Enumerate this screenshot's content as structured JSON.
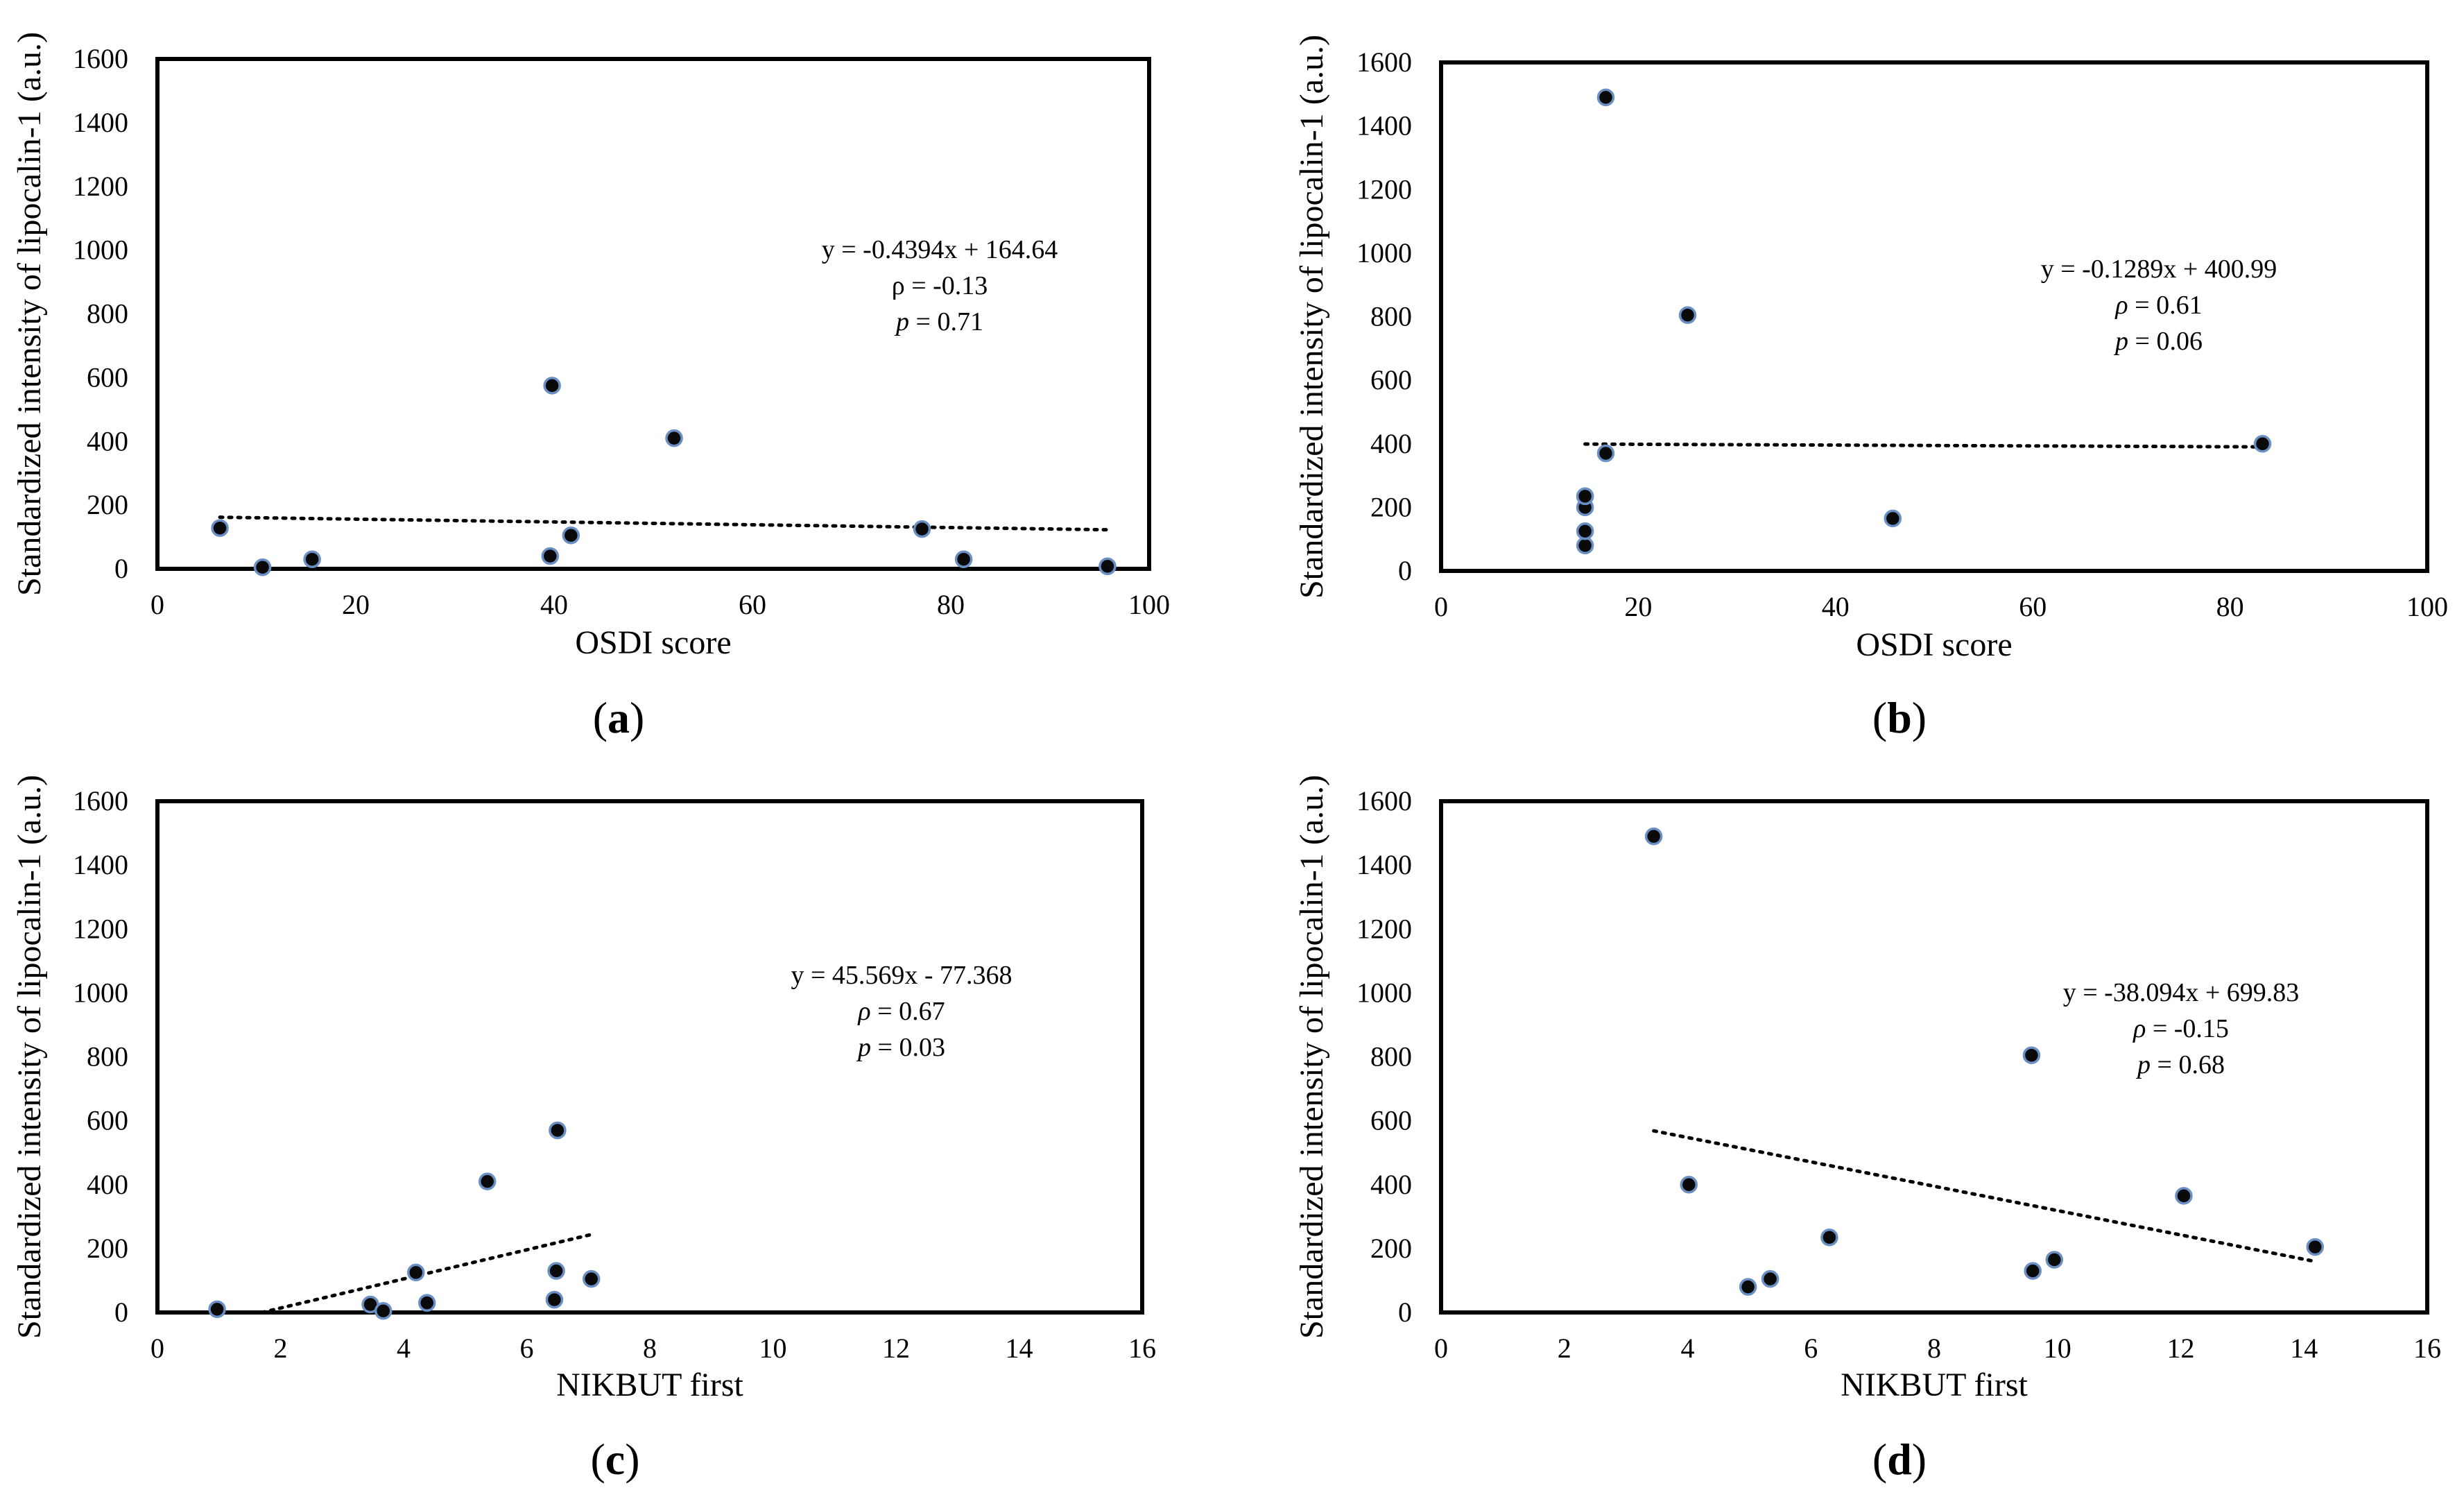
{
  "figure_ylabel": "Standardized intensity of lipocalin-1 (a.u.)",
  "chart_data": [
    {
      "type": "scatter",
      "panel": "(a)",
      "panel_letter": "a",
      "xlabel": "OSDI score",
      "ylabel": "Standardized intensity of lipocalin-1 (a.u.)",
      "xlim": [
        0,
        100
      ],
      "ylim": [
        0,
        1600
      ],
      "xticks": [
        0,
        20,
        40,
        60,
        80,
        100
      ],
      "yticks": [
        0,
        200,
        400,
        600,
        800,
        1000,
        1200,
        1400,
        1600
      ],
      "x": [
        6.3,
        10.6,
        15.6,
        39.6,
        39.8,
        41.7,
        52.1,
        77.1,
        81.3,
        95.8
      ],
      "y": [
        128,
        5,
        30,
        40,
        575,
        105,
        410,
        125,
        30,
        8
      ],
      "trendline": {
        "slope": -0.4394,
        "intercept": 164.64,
        "x_range": [
          6.3,
          95.8
        ]
      },
      "annotation": {
        "equation": "y = -0.4394x + 164.64",
        "rho_symbol": "ρ",
        "rho_rest": " = -0.13",
        "p_symbol": "p",
        "p_rest": " = 0.71",
        "rho_italic": false
      }
    },
    {
      "type": "scatter",
      "panel": "(b)",
      "panel_letter": "b",
      "xlabel": "OSDI score",
      "ylabel": "Standardized intensity of lipocalin-1 (a.u.)",
      "xlim": [
        0,
        100
      ],
      "ylim": [
        0,
        1600
      ],
      "xticks": [
        0,
        20,
        40,
        60,
        80,
        100
      ],
      "yticks": [
        0,
        200,
        400,
        600,
        800,
        1000,
        1200,
        1400,
        1600
      ],
      "x": [
        14.6,
        14.6,
        14.6,
        14.6,
        14.6,
        16.7,
        16.7,
        25.0,
        45.8,
        83.3
      ],
      "y": [
        80,
        125,
        200,
        235,
        235,
        370,
        1490,
        805,
        165,
        400
      ],
      "trendline": {
        "slope": -0.1289,
        "intercept": 400.99,
        "x_range": [
          14.6,
          83.3
        ]
      },
      "annotation": {
        "equation": "y = -0.1289x + 400.99",
        "rho_symbol": "ρ",
        "rho_rest": " = 0.61",
        "p_symbol": "p",
        "p_rest": " = 0.06",
        "rho_italic": true
      }
    },
    {
      "type": "scatter",
      "panel": "(c)",
      "panel_letter": "c",
      "xlabel": "NIKBUT  first",
      "ylabel": "Standardized intensity of lipocalin-1 (a.u.)",
      "xlim": [
        0,
        16
      ],
      "ylim": [
        0,
        1600
      ],
      "xticks": [
        0,
        2,
        4,
        6,
        8,
        10,
        12,
        14,
        16
      ],
      "yticks": [
        0,
        200,
        400,
        600,
        800,
        1000,
        1200,
        1400,
        1600
      ],
      "x": [
        0.97,
        3.46,
        3.67,
        4.2,
        4.38,
        5.36,
        6.45,
        6.48,
        6.5,
        7.05
      ],
      "y": [
        10,
        25,
        5,
        125,
        30,
        410,
        40,
        130,
        570,
        105
      ],
      "trendline": {
        "slope": 45.569,
        "intercept": -77.368,
        "x_range": [
          1.7,
          7.05
        ]
      },
      "annotation": {
        "equation": "y = 45.569x - 77.368",
        "rho_symbol": "ρ",
        "rho_rest": " = 0.67",
        "p_symbol": "p",
        "p_rest": " = 0.03",
        "rho_italic": true
      }
    },
    {
      "type": "scatter",
      "panel": "(d)",
      "panel_letter": "d",
      "xlabel": "NIKBUT  first",
      "ylabel": "Standardized intensity of lipocalin-1 (a.u.)",
      "xlim": [
        0,
        16
      ],
      "ylim": [
        0,
        1600
      ],
      "xticks": [
        0,
        2,
        4,
        6,
        8,
        10,
        12,
        14,
        16
      ],
      "yticks": [
        0,
        200,
        400,
        600,
        800,
        1000,
        1200,
        1400,
        1600
      ],
      "x": [
        3.45,
        4.02,
        4.98,
        5.34,
        6.3,
        9.58,
        9.6,
        9.95,
        12.05,
        14.18
      ],
      "y": [
        1490,
        400,
        80,
        105,
        235,
        805,
        130,
        165,
        365,
        205
      ],
      "trendline": {
        "slope": -38.094,
        "intercept": 699.83,
        "x_range": [
          3.45,
          14.18
        ]
      },
      "annotation": {
        "equation": "y = -38.094x + 699.83",
        "rho_symbol": "ρ",
        "rho_rest": " = -0.15",
        "p_symbol": "p",
        "p_rest": " = 0.68",
        "rho_italic": true
      }
    }
  ]
}
